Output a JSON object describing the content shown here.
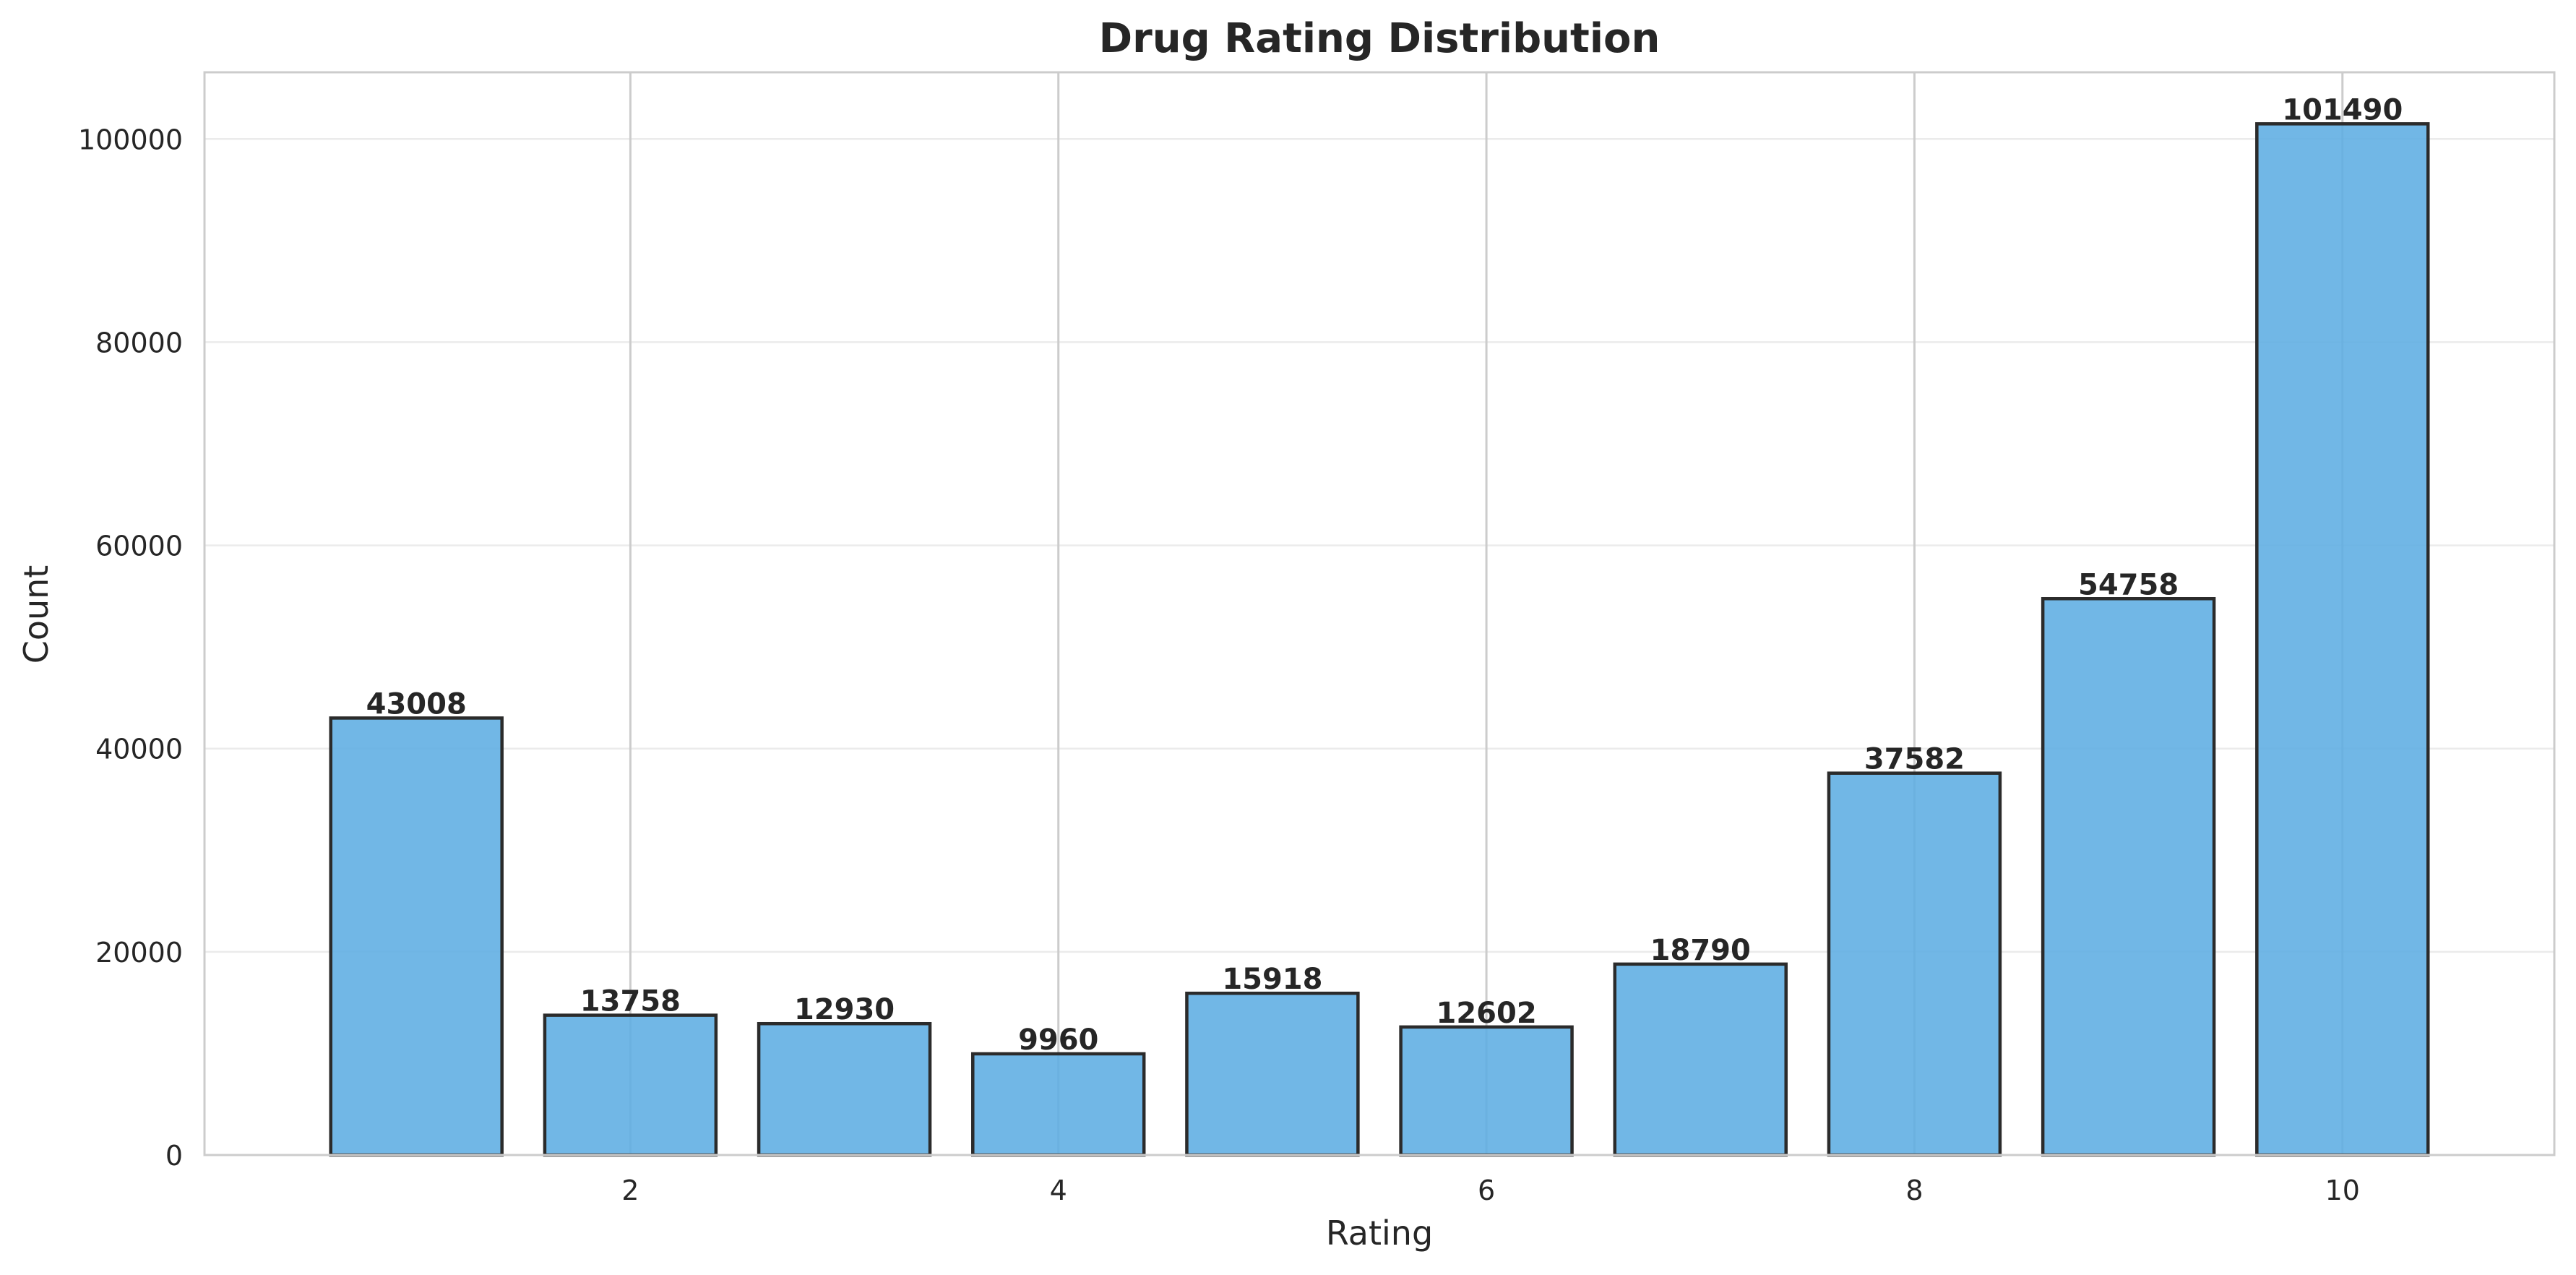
{
  "chart_data": {
    "type": "bar",
    "title": "Drug Rating Distribution",
    "xlabel": "Rating",
    "ylabel": "Count",
    "x": [
      1,
      2,
      3,
      4,
      5,
      6,
      7,
      8,
      9,
      10
    ],
    "values": [
      43008,
      13758,
      12930,
      9960,
      15918,
      12602,
      18790,
      37582,
      54758,
      101490
    ],
    "data_labels": [
      "43008",
      "13758",
      "12930",
      "9960",
      "15918",
      "12602",
      "18790",
      "37582",
      "54758",
      "101490"
    ],
    "xlim": [
      0.01,
      10.99
    ],
    "ylim": [
      0,
      106565
    ],
    "xticks": [
      2,
      4,
      6,
      8,
      10
    ],
    "xtick_labels": [
      "2",
      "4",
      "6",
      "8",
      "10"
    ],
    "yticks": [
      0,
      20000,
      40000,
      60000,
      80000,
      100000
    ],
    "ytick_labels": [
      "0",
      "20000",
      "40000",
      "60000",
      "80000",
      "100000"
    ],
    "bar_color": "#5DADE2",
    "edge_color": "#2b2b2b",
    "grid": true,
    "legend": "none"
  }
}
